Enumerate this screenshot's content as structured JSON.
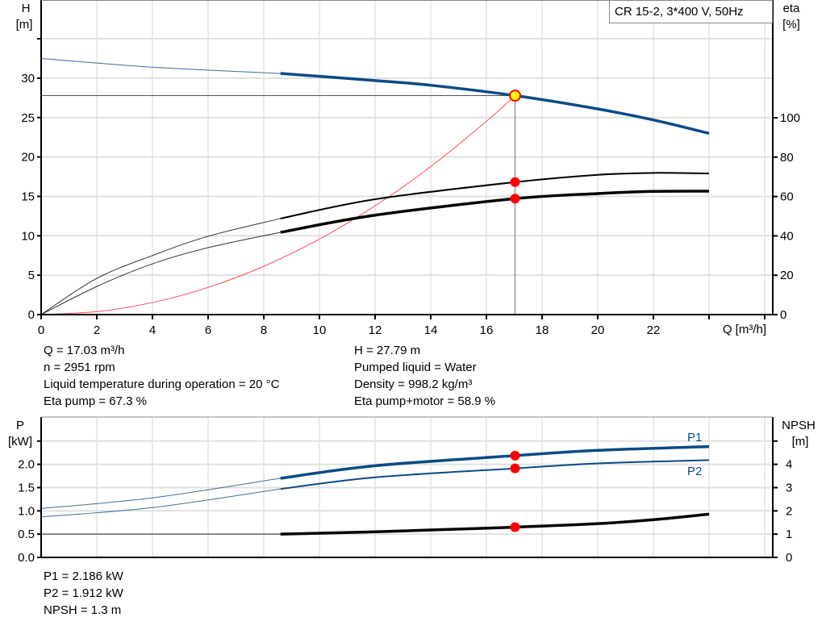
{
  "title_box": "CR 15-2, 3*400 V, 50Hz",
  "colors": {
    "head": "#0a4a86",
    "efficiency": "#000000",
    "system": "#ff5050",
    "marker": "#ff0000",
    "op_point_fill": "#ffff00",
    "power": "#0a4a86",
    "npsh": "#000000"
  },
  "info_top": {
    "left": [
      "Q = 17.03 m³/h",
      "n = 2951 rpm",
      "Liquid temperature during operation = 20 °C",
      "Eta pump = 67.3 %"
    ],
    "right": [
      "H = 27.79 m",
      "Pumped liquid = Water",
      "Density = 998.2 kg/m³",
      "Eta pump+motor = 58.9 %"
    ]
  },
  "info_bottom": [
    "P1 = 2.186 kW",
    "P2 = 1.912 kW",
    "NPSH = 1.3 m"
  ],
  "chart_data": [
    {
      "type": "line",
      "xlabel": "Q [m³/h]",
      "ylabel": [
        "H",
        "[m]"
      ],
      "y2label": [
        "eta",
        "[%]"
      ],
      "xlim": [
        0,
        26
      ],
      "ylim": [
        0,
        35
      ],
      "y2lim": [
        0,
        143.4
      ],
      "xticks": [
        "0",
        "2",
        "4",
        "6",
        "8",
        "10",
        "12",
        "14",
        "16",
        "18",
        "20",
        "22",
        "",
        ""
      ],
      "yticks": [
        "0",
        "5",
        "10",
        "15",
        "20",
        "25",
        "30",
        ""
      ],
      "y2ticks": [
        "0",
        "20",
        "40",
        "60",
        "80",
        "100"
      ],
      "grid": true,
      "series": [
        {
          "key": "head",
          "axis": "left",
          "x": [
            0,
            4,
            8.6,
            12,
            14,
            17.03,
            20,
            22,
            24
          ],
          "y": [
            32.5,
            31.4,
            30.6,
            29.7,
            29.1,
            27.79,
            26.1,
            24.7,
            23.0
          ]
        },
        {
          "key": "eta_pump",
          "axis": "right",
          "x": [
            0,
            2,
            4,
            6,
            8.6,
            12,
            17.03,
            20,
            22,
            24
          ],
          "y": [
            0,
            18.4,
            30,
            39.8,
            48.8,
            58.6,
            67.3,
            71,
            72,
            71.7
          ]
        },
        {
          "key": "eta_pump_motor",
          "axis": "right",
          "x": [
            0,
            2,
            4,
            6,
            8.6,
            12,
            17.03,
            20,
            22,
            24
          ],
          "y": [
            0,
            14.3,
            25.8,
            34,
            41.8,
            50.5,
            58.9,
            61.5,
            62.6,
            62.7
          ]
        },
        {
          "key": "system",
          "axis": "left",
          "x": [
            0,
            2,
            4,
            6,
            8,
            10,
            12,
            14,
            16,
            17.03
          ],
          "y": [
            0,
            0.38,
            1.53,
            3.45,
            6.13,
            9.58,
            13.8,
            18.78,
            24.53,
            27.79
          ]
        }
      ],
      "duty_point": {
        "q": 17.03,
        "h": 27.79,
        "eta_pump": 67.3,
        "eta_pump_motor": 58.9
      }
    },
    {
      "type": "line",
      "ylabel": [
        "P",
        "[kW]"
      ],
      "y2label": [
        "NPSH",
        "[m]"
      ],
      "xlim": [
        0,
        26
      ],
      "ylim": [
        0,
        2.5
      ],
      "y2lim": [
        0,
        5
      ],
      "yticks": [
        "0.0",
        "0.5",
        "1.0",
        "1.5",
        "2.0",
        ""
      ],
      "y2ticks": [
        "0",
        "1",
        "2",
        "3",
        "4",
        ""
      ],
      "grid": true,
      "series": [
        {
          "key": "p1",
          "name": "P1",
          "axis": "left",
          "x": [
            0,
            4,
            8.6,
            12,
            17.03,
            20,
            24
          ],
          "y": [
            1.05,
            1.28,
            1.7,
            1.97,
            2.186,
            2.3,
            2.38
          ]
        },
        {
          "key": "p2",
          "name": "P2",
          "axis": "left",
          "x": [
            0,
            4,
            8.6,
            12,
            17.03,
            20,
            24
          ],
          "y": [
            0.87,
            1.07,
            1.47,
            1.72,
            1.912,
            2.02,
            2.09
          ]
        },
        {
          "key": "npsh",
          "axis": "right",
          "x": [
            0,
            6,
            8.6,
            12,
            14,
            17.03,
            20,
            22,
            24
          ],
          "y": [
            1.0,
            1.0,
            1.0,
            1.1,
            1.18,
            1.3,
            1.45,
            1.62,
            1.86
          ]
        }
      ],
      "duty_point": {
        "q": 17.03,
        "p1": 2.186,
        "p2": 1.912,
        "npsh": 1.3
      }
    }
  ]
}
